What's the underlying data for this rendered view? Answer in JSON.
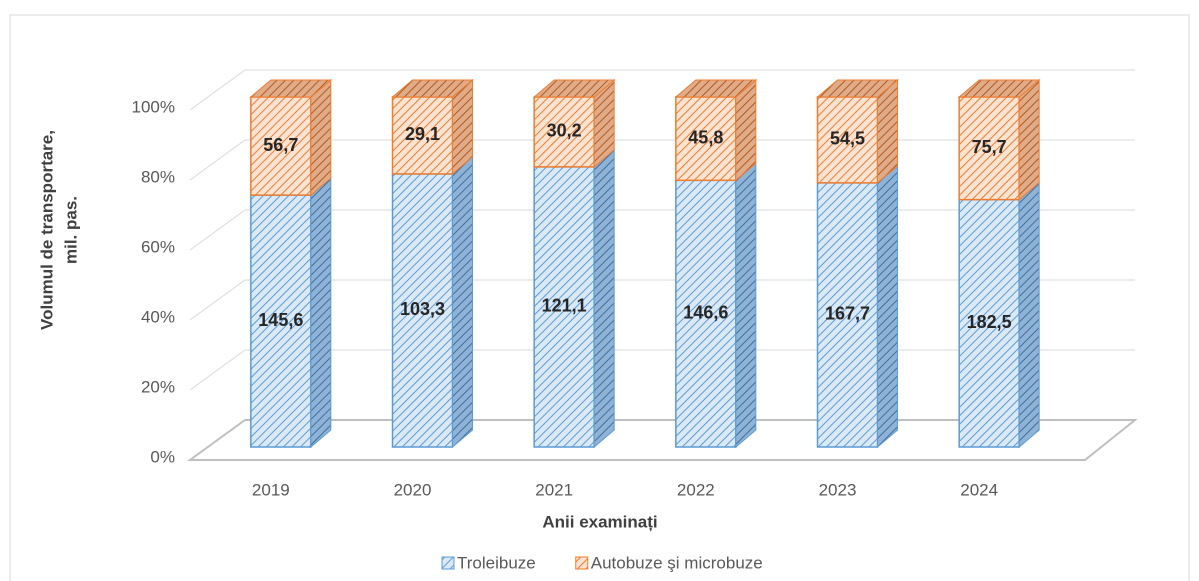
{
  "chart_data": {
    "type": "bar3d",
    "stacking": "percent",
    "xlabel": "Anii examinați",
    "ylabel": [
      "Volumul de transportare,",
      "mil. pas."
    ],
    "categories": [
      "2019",
      "2020",
      "2021",
      "2022",
      "2023",
      "2024"
    ],
    "series": [
      {
        "name": "Troleibuze",
        "color": "#5b9bd5",
        "values": [
          145.6,
          103.3,
          121.1,
          146.6,
          167.7,
          182.5
        ],
        "value_labels": [
          "145,6",
          "103,3",
          "121,1",
          "146,6",
          "167,7",
          "182,5"
        ]
      },
      {
        "name": "Autobuze şi microbuze",
        "color": "#ed7d31",
        "values": [
          56.7,
          29.1,
          30.2,
          45.8,
          54.5,
          75.7
        ],
        "value_labels": [
          "56,7",
          "29,1",
          "30,2",
          "45,8",
          "54,5",
          "75,7"
        ]
      }
    ],
    "ylim": [
      0,
      100
    ],
    "yticks": [
      {
        "value": 0,
        "label": "0%"
      },
      {
        "value": 20,
        "label": "20%"
      },
      {
        "value": 40,
        "label": "40%"
      },
      {
        "value": 60,
        "label": "60%"
      },
      {
        "value": 80,
        "label": "80%"
      },
      {
        "value": 100,
        "label": "100%"
      }
    ],
    "grid": true,
    "legend": "bottom"
  }
}
